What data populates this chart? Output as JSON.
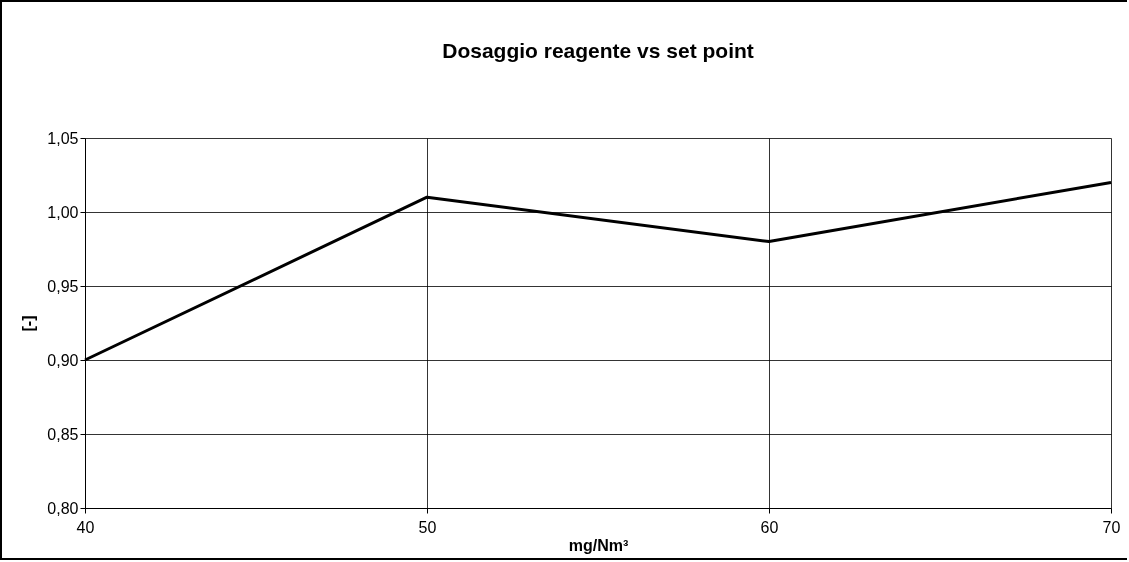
{
  "chart_data": {
    "type": "line",
    "title": "Dosaggio reagente vs set point",
    "xlabel": "mg/Nm³",
    "ylabel": "[-]",
    "x": [
      40,
      50,
      60,
      70
    ],
    "series": [
      {
        "color": "#000000",
        "values": [
          0.9,
          1.01,
          0.98,
          1.02
        ]
      }
    ],
    "xlim": [
      40,
      70
    ],
    "xticks": [
      40,
      50,
      60,
      70
    ],
    "ylim": [
      0.8,
      1.05
    ],
    "yticks": [
      {
        "value": 0.8,
        "label": "0,80"
      },
      {
        "value": 0.85,
        "label": "0,85"
      },
      {
        "value": 0.9,
        "label": "0,90"
      },
      {
        "value": 0.95,
        "label": "0,95"
      },
      {
        "value": 1.0,
        "label": "1,00"
      },
      {
        "value": 1.05,
        "label": "1,05"
      }
    ],
    "grid": true,
    "legend": false,
    "marker": "none",
    "line_style": "solid"
  }
}
